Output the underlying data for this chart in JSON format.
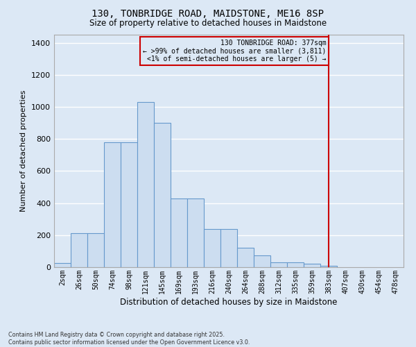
{
  "title1": "130, TONBRIDGE ROAD, MAIDSTONE, ME16 8SP",
  "title2": "Size of property relative to detached houses in Maidstone",
  "xlabel": "Distribution of detached houses by size in Maidstone",
  "ylabel": "Number of detached properties",
  "categories": [
    "2sqm",
    "26sqm",
    "50sqm",
    "74sqm",
    "98sqm",
    "121sqm",
    "145sqm",
    "169sqm",
    "193sqm",
    "216sqm",
    "240sqm",
    "264sqm",
    "288sqm",
    "312sqm",
    "335sqm",
    "359sqm",
    "383sqm",
    "407sqm",
    "430sqm",
    "454sqm",
    "478sqm"
  ],
  "values": [
    25,
    210,
    210,
    780,
    780,
    1030,
    900,
    430,
    430,
    240,
    240,
    120,
    75,
    30,
    30,
    20,
    10,
    0,
    0,
    0,
    0
  ],
  "bar_color": "#ccddf0",
  "bar_edge_color": "#6699cc",
  "bg_color": "#dce8f5",
  "grid_color": "#ffffff",
  "vline_x_index": 16,
  "vline_color": "#cc0000",
  "annotation_text": "130 TONBRIDGE ROAD: 377sqm\n← >99% of detached houses are smaller (3,811)\n<1% of semi-detached houses are larger (5) →",
  "footnote": "Contains HM Land Registry data © Crown copyright and database right 2025.\nContains public sector information licensed under the Open Government Licence v3.0.",
  "ylim": [
    0,
    1450
  ],
  "yticks": [
    0,
    200,
    400,
    600,
    800,
    1000,
    1200,
    1400
  ]
}
